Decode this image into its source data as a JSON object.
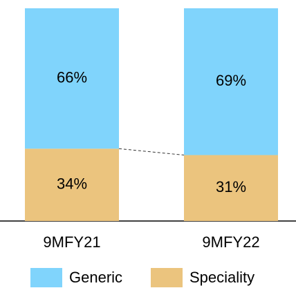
{
  "chart_data": {
    "type": "stacked_bar",
    "categories": [
      "9MFY21",
      "9MFY22"
    ],
    "series": [
      {
        "name": "Generic",
        "color": "#80d4fc",
        "values": [
          66,
          69
        ],
        "value_labels": [
          "66%",
          "69%"
        ]
      },
      {
        "name": "Speciality",
        "color": "#ebc47e",
        "values": [
          34,
          31
        ],
        "value_labels": [
          "34%",
          "31%"
        ]
      }
    ],
    "legend": "bottom"
  }
}
